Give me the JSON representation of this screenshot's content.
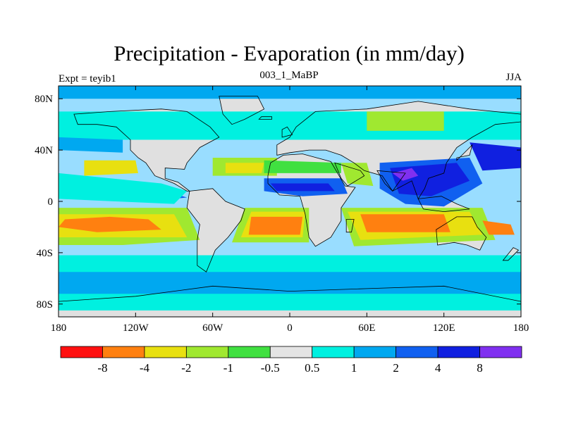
{
  "title": "Precipitation - Evaporation (in mm/day)",
  "subtitle_left": "Expt = teyib1",
  "subtitle_center": "003_1_MaBP",
  "subtitle_right": "JJA",
  "map": {
    "projection": "cylindrical-equidistant",
    "lon_range": [
      -180,
      180
    ],
    "lat_range": [
      -90,
      90
    ],
    "fill_color_ocean_default": "#99ddff",
    "land_color": "#e0e0e0",
    "coastline_color": "#000000"
  },
  "x_ticks": [
    {
      "lon": -180,
      "label": "180"
    },
    {
      "lon": -120,
      "label": "120W"
    },
    {
      "lon": -60,
      "label": "60W"
    },
    {
      "lon": 0,
      "label": "0"
    },
    {
      "lon": 60,
      "label": "60E"
    },
    {
      "lon": 120,
      "label": "120E"
    },
    {
      "lon": 180,
      "label": "180"
    }
  ],
  "y_ticks": [
    {
      "lat": 80,
      "label": "80N"
    },
    {
      "lat": 40,
      "label": "40N"
    },
    {
      "lat": 0,
      "label": "0"
    },
    {
      "lat": -40,
      "label": "40S"
    },
    {
      "lat": -80,
      "label": "80S"
    }
  ],
  "colorbar": {
    "colors": [
      "#ff1010",
      "#ff8010",
      "#e8e010",
      "#a0e830",
      "#40e040",
      "#e4e4e4",
      "#00f0e0",
      "#00a8f0",
      "#1060f0",
      "#1020e0",
      "#8030f0"
    ],
    "labels": [
      "-8",
      "-4",
      "-2",
      "-1",
      "-0.5",
      "0.5",
      "1",
      "2",
      "4",
      "8"
    ]
  },
  "regions": [
    {
      "color": "#00a8f0",
      "name": "southern ocean band",
      "points": [
        [
          -180,
          -50
        ],
        [
          180,
          -50
        ],
        [
          180,
          -78
        ],
        [
          -180,
          -78
        ]
      ]
    },
    {
      "color": "#00f0e0",
      "name": "southern cyan band",
      "points": [
        [
          -180,
          -42
        ],
        [
          180,
          -42
        ],
        [
          180,
          -55
        ],
        [
          -180,
          -55
        ]
      ]
    },
    {
      "color": "#00f0e0",
      "name": "south high lat",
      "points": [
        [
          -180,
          -72
        ],
        [
          180,
          -72
        ],
        [
          180,
          -85
        ],
        [
          -180,
          -85
        ]
      ]
    },
    {
      "color": "#a0e830",
      "name": "south subtropic green",
      "points": [
        [
          -180,
          -5
        ],
        [
          -80,
          -5
        ],
        [
          -70,
          -30
        ],
        [
          -130,
          -34
        ],
        [
          -180,
          -34
        ]
      ]
    },
    {
      "color": "#e8e010",
      "name": "south subtropic yellow",
      "points": [
        [
          -180,
          -10
        ],
        [
          -90,
          -10
        ],
        [
          -80,
          -28
        ],
        [
          -180,
          -28
        ]
      ]
    },
    {
      "color": "#ff8010",
      "name": "south pacific orange",
      "points": [
        [
          -175,
          -14
        ],
        [
          -140,
          -12
        ],
        [
          -110,
          -14
        ],
        [
          -100,
          -22
        ],
        [
          -150,
          -24
        ],
        [
          -180,
          -20
        ]
      ]
    },
    {
      "color": "#a0e830",
      "name": "south atlantic green",
      "points": [
        [
          -35,
          -5
        ],
        [
          15,
          -5
        ],
        [
          15,
          -32
        ],
        [
          -45,
          -32
        ]
      ]
    },
    {
      "color": "#e8e010",
      "name": "south atlantic yellow",
      "points": [
        [
          -30,
          -8
        ],
        [
          12,
          -8
        ],
        [
          10,
          -28
        ],
        [
          -38,
          -28
        ]
      ]
    },
    {
      "color": "#ff8010",
      "name": "south atlantic orange",
      "points": [
        [
          -30,
          -12
        ],
        [
          10,
          -12
        ],
        [
          8,
          -26
        ],
        [
          -32,
          -26
        ]
      ]
    },
    {
      "color": "#a0e830",
      "name": "indian ocean green",
      "points": [
        [
          40,
          -5
        ],
        [
          150,
          -5
        ],
        [
          160,
          -30
        ],
        [
          50,
          -35
        ]
      ]
    },
    {
      "color": "#e8e010",
      "name": "indian ocean yellow",
      "points": [
        [
          45,
          -8
        ],
        [
          140,
          -8
        ],
        [
          150,
          -26
        ],
        [
          55,
          -30
        ]
      ]
    },
    {
      "color": "#ff8010",
      "name": "indian ocean orange",
      "points": [
        [
          55,
          -10
        ],
        [
          120,
          -10
        ],
        [
          125,
          -24
        ],
        [
          60,
          -24
        ]
      ]
    },
    {
      "color": "#ff8010",
      "name": "east pacific orange",
      "points": [
        [
          150,
          -15
        ],
        [
          172,
          -18
        ],
        [
          175,
          -26
        ],
        [
          155,
          -26
        ]
      ]
    },
    {
      "color": "#1060f0",
      "name": "ITCZ pacific",
      "points": [
        [
          -180,
          20
        ],
        [
          -150,
          14
        ],
        [
          -120,
          8
        ],
        [
          -90,
          6
        ],
        [
          -80,
          3
        ],
        [
          -110,
          0
        ],
        [
          -150,
          2
        ],
        [
          -180,
          6
        ]
      ]
    },
    {
      "color": "#1020e0",
      "name": "ITCZ pacific core",
      "points": [
        [
          -170,
          14
        ],
        [
          -130,
          10
        ],
        [
          -100,
          6
        ],
        [
          -120,
          4
        ],
        [
          -160,
          8
        ]
      ]
    },
    {
      "color": "#00f0e0",
      "name": "ITCZ pacific edge",
      "points": [
        [
          -180,
          22
        ],
        [
          -100,
          14
        ],
        [
          -80,
          8
        ],
        [
          -90,
          -2
        ],
        [
          -180,
          2
        ]
      ]
    },
    {
      "color": "#1060f0",
      "name": "monsoon africa",
      "points": [
        [
          -20,
          18
        ],
        [
          40,
          18
        ],
        [
          45,
          6
        ],
        [
          10,
          4
        ],
        [
          -20,
          8
        ]
      ]
    },
    {
      "color": "#1020e0",
      "name": "monsoon africa core",
      "points": [
        [
          -15,
          14
        ],
        [
          30,
          14
        ],
        [
          35,
          8
        ],
        [
          -10,
          8
        ]
      ]
    },
    {
      "color": "#1060f0",
      "name": "asian monsoon",
      "points": [
        [
          70,
          30
        ],
        [
          140,
          34
        ],
        [
          150,
          14
        ],
        [
          120,
          -4
        ],
        [
          90,
          -2
        ],
        [
          70,
          10
        ]
      ]
    },
    {
      "color": "#1020e0",
      "name": "asian monsoon core",
      "points": [
        [
          78,
          26
        ],
        [
          130,
          30
        ],
        [
          140,
          16
        ],
        [
          110,
          4
        ],
        [
          85,
          6
        ]
      ]
    },
    {
      "color": "#8030f0",
      "name": "asian monsoon max",
      "points": [
        [
          80,
          22
        ],
        [
          95,
          26
        ],
        [
          100,
          20
        ],
        [
          88,
          16
        ]
      ]
    },
    {
      "color": "#1020e0",
      "name": "north pacific",
      "points": [
        [
          140,
          46
        ],
        [
          180,
          42
        ],
        [
          180,
          26
        ],
        [
          150,
          24
        ]
      ]
    },
    {
      "color": "#00f0e0",
      "name": "north high lat cyan",
      "points": [
        [
          -180,
          70
        ],
        [
          180,
          70
        ],
        [
          180,
          48
        ],
        [
          -180,
          48
        ]
      ]
    },
    {
      "color": "#00a8f0",
      "name": "north pacific blue",
      "points": [
        [
          -180,
          50
        ],
        [
          -130,
          48
        ],
        [
          -130,
          38
        ],
        [
          -180,
          40
        ]
      ]
    },
    {
      "color": "#e8e010",
      "name": "north pacific yellow",
      "points": [
        [
          -160,
          32
        ],
        [
          -120,
          32
        ],
        [
          -118,
          22
        ],
        [
          -160,
          20
        ]
      ]
    },
    {
      "color": "#a0e830",
      "name": "north atlantic green",
      "points": [
        [
          -60,
          34
        ],
        [
          -10,
          34
        ],
        [
          -10,
          20
        ],
        [
          -60,
          20
        ]
      ]
    },
    {
      "color": "#e8e010",
      "name": "north atlantic yellow",
      "points": [
        [
          -50,
          30
        ],
        [
          -20,
          30
        ],
        [
          -22,
          22
        ],
        [
          -50,
          22
        ]
      ]
    },
    {
      "color": "#a0e830",
      "name": "arabian green",
      "points": [
        [
          40,
          30
        ],
        [
          60,
          30
        ],
        [
          65,
          12
        ],
        [
          45,
          14
        ]
      ]
    },
    {
      "color": "#40e040",
      "name": "north africa edge",
      "points": [
        [
          -20,
          32
        ],
        [
          40,
          30
        ],
        [
          40,
          22
        ],
        [
          -20,
          22
        ]
      ]
    },
    {
      "color": "#a0e830",
      "name": "siberia green",
      "points": [
        [
          60,
          70
        ],
        [
          120,
          70
        ],
        [
          120,
          55
        ],
        [
          60,
          55
        ]
      ]
    },
    {
      "color": "#00a8f0",
      "name": "north pole",
      "points": [
        [
          -180,
          90
        ],
        [
          180,
          90
        ],
        [
          180,
          80
        ],
        [
          -180,
          80
        ]
      ]
    }
  ],
  "land": [
    {
      "name": "north america",
      "points": [
        [
          -168,
          68
        ],
        [
          -140,
          70
        ],
        [
          -100,
          72
        ],
        [
          -80,
          70
        ],
        [
          -62,
          58
        ],
        [
          -55,
          50
        ],
        [
          -70,
          42
        ],
        [
          -80,
          30
        ],
        [
          -82,
          25
        ],
        [
          -97,
          26
        ],
        [
          -97,
          18
        ],
        [
          -87,
          15
        ],
        [
          -78,
          8
        ],
        [
          -80,
          8
        ],
        [
          -90,
          14
        ],
        [
          -105,
          20
        ],
        [
          -112,
          30
        ],
        [
          -118,
          34
        ],
        [
          -124,
          40
        ],
        [
          -124,
          48
        ],
        [
          -135,
          58
        ],
        [
          -150,
          60
        ],
        [
          -165,
          60
        ]
      ]
    },
    {
      "name": "greenland",
      "points": [
        [
          -55,
          82
        ],
        [
          -25,
          82
        ],
        [
          -20,
          72
        ],
        [
          -35,
          64
        ],
        [
          -45,
          60
        ],
        [
          -52,
          68
        ]
      ]
    },
    {
      "name": "south america",
      "points": [
        [
          -78,
          8
        ],
        [
          -60,
          10
        ],
        [
          -50,
          0
        ],
        [
          -35,
          -6
        ],
        [
          -38,
          -15
        ],
        [
          -48,
          -28
        ],
        [
          -58,
          -38
        ],
        [
          -65,
          -55
        ],
        [
          -72,
          -50
        ],
        [
          -72,
          -30
        ],
        [
          -70,
          -18
        ],
        [
          -80,
          -5
        ]
      ]
    },
    {
      "name": "africa",
      "points": [
        [
          -17,
          20
        ],
        [
          -15,
          30
        ],
        [
          -5,
          36
        ],
        [
          10,
          37
        ],
        [
          32,
          31
        ],
        [
          43,
          12
        ],
        [
          51,
          11
        ],
        [
          40,
          -5
        ],
        [
          40,
          -15
        ],
        [
          32,
          -28
        ],
        [
          20,
          -35
        ],
        [
          15,
          -28
        ],
        [
          12,
          -10
        ],
        [
          8,
          4
        ],
        [
          -8,
          5
        ],
        [
          -17,
          14
        ]
      ]
    },
    {
      "name": "eurasia",
      "points": [
        [
          -10,
          36
        ],
        [
          -10,
          44
        ],
        [
          0,
          50
        ],
        [
          5,
          58
        ],
        [
          20,
          70
        ],
        [
          60,
          72
        ],
        [
          100,
          78
        ],
        [
          140,
          72
        ],
        [
          180,
          68
        ],
        [
          180,
          62
        ],
        [
          160,
          60
        ],
        [
          142,
          50
        ],
        [
          130,
          42
        ],
        [
          122,
          30
        ],
        [
          120,
          22
        ],
        [
          108,
          18
        ],
        [
          105,
          10
        ],
        [
          100,
          2
        ],
        [
          95,
          16
        ],
        [
          80,
          8
        ],
        [
          72,
          20
        ],
        [
          58,
          24
        ],
        [
          50,
          30
        ],
        [
          40,
          36
        ],
        [
          28,
          40
        ],
        [
          15,
          40
        ],
        [
          0,
          38
        ]
      ]
    },
    {
      "name": "arabia",
      "points": [
        [
          35,
          30
        ],
        [
          55,
          24
        ],
        [
          58,
          20
        ],
        [
          45,
          12
        ],
        [
          40,
          18
        ]
      ]
    },
    {
      "name": "india",
      "points": [
        [
          68,
          24
        ],
        [
          90,
          22
        ],
        [
          80,
          8
        ],
        [
          74,
          14
        ]
      ]
    },
    {
      "name": "australia",
      "points": [
        [
          114,
          -22
        ],
        [
          130,
          -12
        ],
        [
          142,
          -12
        ],
        [
          146,
          -20
        ],
        [
          153,
          -28
        ],
        [
          148,
          -38
        ],
        [
          138,
          -34
        ],
        [
          128,
          -32
        ],
        [
          115,
          -34
        ]
      ]
    },
    {
      "name": "antarctica",
      "points": [
        [
          -180,
          -78
        ],
        [
          -120,
          -74
        ],
        [
          -60,
          -66
        ],
        [
          0,
          -70
        ],
        [
          60,
          -68
        ],
        [
          120,
          -66
        ],
        [
          180,
          -78
        ],
        [
          180,
          -90
        ],
        [
          -180,
          -90
        ]
      ]
    },
    {
      "name": "madagascar",
      "points": [
        [
          44,
          -14
        ],
        [
          50,
          -14
        ],
        [
          48,
          -24
        ],
        [
          44,
          -24
        ]
      ]
    },
    {
      "name": "indonesia",
      "points": [
        [
          100,
          2
        ],
        [
          118,
          4
        ],
        [
          130,
          -2
        ],
        [
          140,
          -6
        ],
        [
          120,
          -8
        ],
        [
          104,
          -6
        ]
      ]
    },
    {
      "name": "japan",
      "points": [
        [
          130,
          34
        ],
        [
          140,
          36
        ],
        [
          142,
          44
        ],
        [
          138,
          40
        ],
        [
          130,
          32
        ]
      ]
    },
    {
      "name": "new zealand",
      "points": [
        [
          166,
          -46
        ],
        [
          174,
          -36
        ],
        [
          178,
          -38
        ],
        [
          170,
          -46
        ]
      ]
    },
    {
      "name": "uk",
      "points": [
        [
          -6,
          50
        ],
        [
          2,
          52
        ],
        [
          -2,
          58
        ],
        [
          -6,
          56
        ]
      ]
    },
    {
      "name": "iceland",
      "points": [
        [
          -24,
          64
        ],
        [
          -14,
          64
        ],
        [
          -14,
          66
        ],
        [
          -22,
          66
        ]
      ]
    }
  ]
}
